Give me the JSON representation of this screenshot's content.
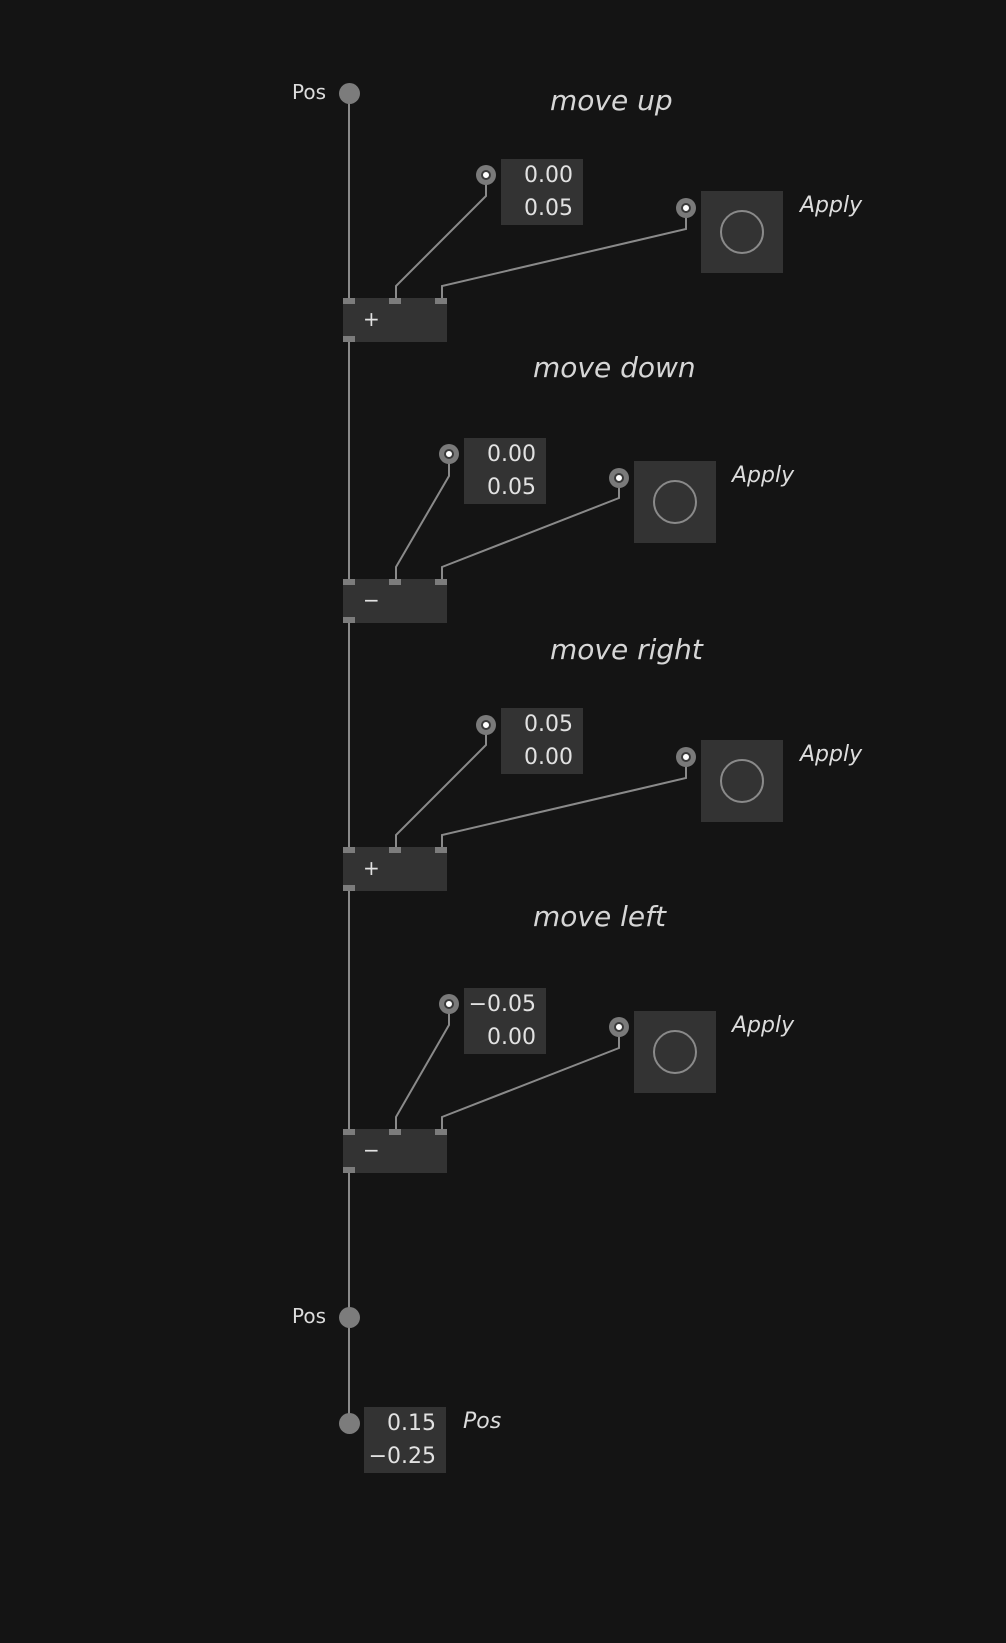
{
  "patch": {
    "pos_input_label": "Pos",
    "pos_output_label": "Pos",
    "pos_result_label": "Pos",
    "pos_result_values": [
      "0.15",
      "−0.25"
    ],
    "sections": [
      {
        "title": "move up",
        "operator": "+",
        "vector_values": [
          "0.00",
          "0.05"
        ],
        "apply_label": "Apply"
      },
      {
        "title": "move down",
        "operator": "−",
        "vector_values": [
          "0.00",
          "0.05"
        ],
        "apply_label": "Apply"
      },
      {
        "title": "move right",
        "operator": "+",
        "vector_values": [
          "0.05",
          "0.00"
        ],
        "apply_label": "Apply"
      },
      {
        "title": "move left",
        "operator": "−",
        "vector_values": [
          "−0.05",
          "0.00"
        ],
        "apply_label": "Apply"
      }
    ]
  },
  "colors": {
    "background": "#141414",
    "node_fill": "#333333",
    "wire": "#8a8a8a",
    "text": "#dcdcdc"
  }
}
